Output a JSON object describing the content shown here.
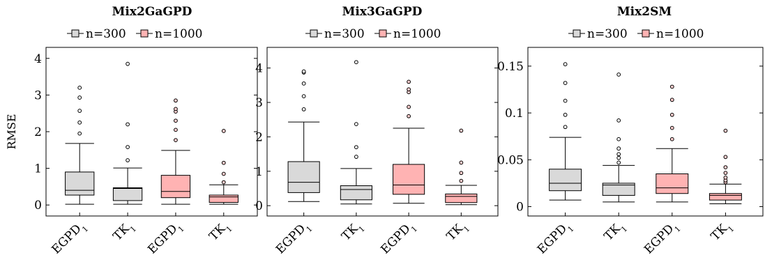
{
  "colors": {
    "n300": "#d9d9d9",
    "n1000": "#ffb3b3",
    "stroke": "#000000",
    "flier_n300": "#ffffff",
    "flier_n1000": "#ffd0d0"
  },
  "chart_data": [
    {
      "type": "box",
      "title": "Mix2GaGPD",
      "ylabel": "RMSE",
      "legend": [
        {
          "label": "n=300"
        },
        {
          "label": "n=1000"
        }
      ],
      "categories": [
        {
          "base": "EGPD",
          "sub": "1"
        },
        {
          "base": "TK",
          "sub": "1"
        },
        {
          "base": "EGPD",
          "sub": "1"
        },
        {
          "base": "TK",
          "sub": "1"
        }
      ],
      "ylim": [
        -0.3,
        4.3
      ],
      "yticks": [
        0,
        1,
        2,
        3,
        4
      ],
      "ytick_labels": [
        "0",
        "1",
        "2",
        "3",
        "4"
      ],
      "boxes": [
        {
          "group": "n=300",
          "min": 0.02,
          "q1": 0.27,
          "median": 0.4,
          "q3": 0.9,
          "max": 1.68,
          "outliers": [
            1.95,
            2.25,
            2.57,
            2.93,
            3.2
          ]
        },
        {
          "group": "n=300",
          "min": 0.02,
          "q1": 0.12,
          "median": 0.45,
          "q3": 0.47,
          "max": 1.01,
          "outliers": [
            1.22,
            1.58,
            2.2,
            3.85
          ]
        },
        {
          "group": "n=1000",
          "min": 0.02,
          "q1": 0.2,
          "median": 0.37,
          "q3": 0.81,
          "max": 1.49,
          "outliers": [
            1.77,
            2.05,
            2.3,
            2.55,
            2.62,
            2.85
          ]
        },
        {
          "group": "n=1000",
          "min": 0.02,
          "q1": 0.07,
          "median": 0.22,
          "q3": 0.27,
          "max": 0.55,
          "outliers": [
            0.62,
            0.85,
            1.15,
            2.02
          ]
        }
      ]
    },
    {
      "type": "box",
      "title": "Mix3GaGPD",
      "ylabel": "",
      "legend": [
        {
          "label": "n=300"
        },
        {
          "label": "n=1000"
        }
      ],
      "categories": [
        {
          "base": "EGPD",
          "sub": "1"
        },
        {
          "base": "TK",
          "sub": "1"
        },
        {
          "base": "EGPD",
          "sub": "1"
        },
        {
          "base": "TK",
          "sub": "1"
        }
      ],
      "ylim": [
        -0.3,
        4.6
      ],
      "yticks": [
        0,
        1,
        2,
        3,
        4
      ],
      "ytick_labels": [
        "0",
        "1",
        "2",
        "3",
        "4"
      ],
      "boxes": [
        {
          "group": "n=300",
          "min": 0.12,
          "q1": 0.38,
          "median": 0.68,
          "q3": 1.28,
          "max": 2.43,
          "outliers": [
            2.8,
            3.18,
            3.55,
            3.87,
            3.9
          ]
        },
        {
          "group": "n=300",
          "min": 0.05,
          "q1": 0.17,
          "median": 0.47,
          "q3": 0.58,
          "max": 1.08,
          "outliers": [
            1.42,
            1.7,
            2.37,
            4.17
          ]
        },
        {
          "group": "n=1000",
          "min": 0.07,
          "q1": 0.33,
          "median": 0.6,
          "q3": 1.2,
          "max": 2.25,
          "outliers": [
            2.6,
            2.87,
            3.3,
            3.38,
            3.6
          ]
        },
        {
          "group": "n=1000",
          "min": 0.03,
          "q1": 0.09,
          "median": 0.27,
          "q3": 0.34,
          "max": 0.59,
          "outliers": [
            0.72,
            0.95,
            1.25,
            2.18
          ]
        }
      ]
    },
    {
      "type": "box",
      "title": "Mix2SM",
      "ylabel": "",
      "legend": [
        {
          "label": "n=300"
        },
        {
          "label": "n=1000"
        }
      ],
      "categories": [
        {
          "base": "EGPD",
          "sub": "1"
        },
        {
          "base": "TK",
          "sub": "1"
        },
        {
          "base": "EGPD",
          "sub": "1"
        },
        {
          "base": "TK",
          "sub": "1"
        }
      ],
      "ylim": [
        -0.01,
        0.17
      ],
      "yticks": [
        0,
        0.05,
        0.1,
        0.15
      ],
      "ytick_labels": [
        "0",
        "0.05",
        "0.1",
        "0.15"
      ],
      "boxes": [
        {
          "group": "n=300",
          "min": 0.007,
          "q1": 0.017,
          "median": 0.025,
          "q3": 0.04,
          "max": 0.074,
          "outliers": [
            0.085,
            0.098,
            0.113,
            0.132,
            0.152
          ]
        },
        {
          "group": "n=300",
          "min": 0.005,
          "q1": 0.012,
          "median": 0.023,
          "q3": 0.025,
          "max": 0.044,
          "outliers": [
            0.047,
            0.052,
            0.056,
            0.062,
            0.072,
            0.092,
            0.141
          ]
        },
        {
          "group": "n=1000",
          "min": 0.005,
          "q1": 0.014,
          "median": 0.02,
          "q3": 0.035,
          "max": 0.062,
          "outliers": [
            0.072,
            0.084,
            0.098,
            0.114,
            0.128
          ]
        },
        {
          "group": "n=1000",
          "min": 0.003,
          "q1": 0.007,
          "median": 0.012,
          "q3": 0.014,
          "max": 0.024,
          "outliers": [
            0.026,
            0.028,
            0.031,
            0.036,
            0.042,
            0.053,
            0.081
          ]
        }
      ]
    }
  ]
}
